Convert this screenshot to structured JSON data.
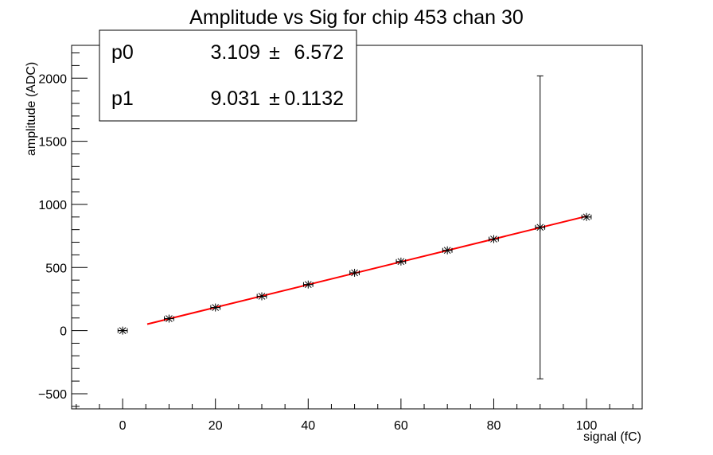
{
  "chart_data": {
    "type": "scatter",
    "title": "Amplitude vs Sig for chip 453 chan 30",
    "xlabel": "signal (fC)",
    "ylabel": "amplitude (ADC)",
    "xlim": [
      -11,
      112
    ],
    "ylim": [
      -620,
      2260
    ],
    "x_ticks": [
      0,
      20,
      40,
      60,
      80,
      100
    ],
    "y_ticks": [
      -500,
      0,
      500,
      1000,
      1500,
      2000
    ],
    "grid": false,
    "points": [
      {
        "x": 0,
        "y": 0,
        "xerr": 1,
        "yerr": 0
      },
      {
        "x": 10,
        "y": 95,
        "xerr": 1,
        "yerr": 0
      },
      {
        "x": 20,
        "y": 183,
        "xerr": 1,
        "yerr": 0
      },
      {
        "x": 30,
        "y": 272,
        "xerr": 1,
        "yerr": 0
      },
      {
        "x": 40,
        "y": 365,
        "xerr": 1,
        "yerr": 0
      },
      {
        "x": 50,
        "y": 458,
        "xerr": 1,
        "yerr": 0
      },
      {
        "x": 60,
        "y": 547,
        "xerr": 1,
        "yerr": 0
      },
      {
        "x": 70,
        "y": 636,
        "xerr": 1,
        "yerr": 0
      },
      {
        "x": 80,
        "y": 725,
        "xerr": 1,
        "yerr": 0
      },
      {
        "x": 90,
        "y": 818,
        "xerr": 1,
        "yerr": 1200
      },
      {
        "x": 100,
        "y": 900,
        "xerr": 1,
        "yerr": 0
      }
    ],
    "fit": {
      "type": "line",
      "x_range": [
        5.3,
        100
      ],
      "color": "#ff0000"
    },
    "stats": [
      {
        "name": "p0",
        "value": "3.109",
        "pm": "±",
        "error": "6.572"
      },
      {
        "name": "p1",
        "value": "9.031",
        "pm": "±",
        "error": "0.1132"
      }
    ]
  }
}
